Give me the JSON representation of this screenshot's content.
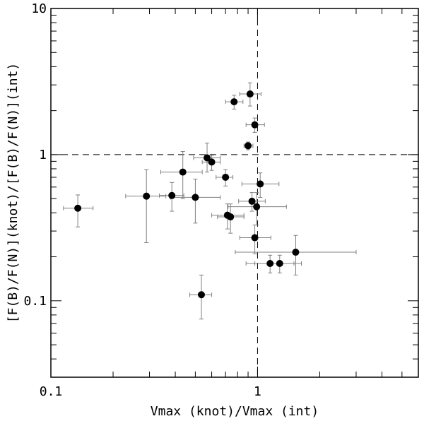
{
  "chart_data": {
    "type": "scatter",
    "title": "",
    "xlabel": "Vmax (knot)/Vmax (int)",
    "ylabel": "[F(B)/F(N)](knot)/[F(B)/F(N)](int)",
    "xscale": "log",
    "yscale": "log",
    "xlim": [
      0.1,
      6
    ],
    "ylim": [
      0.03,
      10
    ],
    "x_tick_labels": [
      {
        "value": 0.1,
        "label": "0.1"
      },
      {
        "value": 1,
        "label": "1"
      }
    ],
    "y_tick_labels": [
      {
        "value": 0.1,
        "label": "0.1"
      },
      {
        "value": 1,
        "label": "1"
      },
      {
        "value": 10,
        "label": "10"
      }
    ],
    "reference_lines": {
      "x": 1,
      "y": 1,
      "style": "dashed"
    },
    "points": [
      {
        "x": 0.135,
        "y": 0.43,
        "xerr": [
          0.115,
          0.16
        ],
        "yerr": [
          0.32,
          0.53
        ]
      },
      {
        "x": 0.29,
        "y": 0.52,
        "xerr": [
          0.23,
          0.36
        ],
        "yerr": [
          0.25,
          0.79
        ]
      },
      {
        "x": 0.385,
        "y": 0.525,
        "xerr": [
          0.335,
          0.44
        ],
        "yerr": [
          0.41,
          0.645
        ]
      },
      {
        "x": 0.435,
        "y": 0.76,
        "xerr": [
          0.34,
          0.54
        ],
        "yerr": [
          0.5,
          1.05
        ]
      },
      {
        "x": 0.5,
        "y": 0.51,
        "xerr": [
          0.38,
          0.66
        ],
        "yerr": [
          0.34,
          0.68
        ]
      },
      {
        "x": 0.535,
        "y": 0.11,
        "xerr": [
          0.47,
          0.6
        ],
        "yerr": [
          0.075,
          0.15
        ]
      },
      {
        "x": 0.57,
        "y": 0.95,
        "xerr": [
          0.49,
          0.66
        ],
        "yerr": [
          0.76,
          1.2
        ]
      },
      {
        "x": 0.6,
        "y": 0.89,
        "xerr": [
          0.54,
          0.66
        ],
        "yerr": [
          0.78,
          0.99
        ]
      },
      {
        "x": 0.7,
        "y": 0.7,
        "xerr": [
          0.63,
          0.76
        ],
        "yerr": [
          0.61,
          0.79
        ]
      },
      {
        "x": 0.715,
        "y": 0.385,
        "xerr": [
          0.6,
          0.86
        ],
        "yerr": [
          0.31,
          0.46
        ]
      },
      {
        "x": 0.74,
        "y": 0.375,
        "xerr": [
          0.64,
          0.86
        ],
        "yerr": [
          0.29,
          0.46
        ]
      },
      {
        "x": 0.77,
        "y": 2.3,
        "xerr": [
          0.7,
          0.85
        ],
        "yerr": [
          2.05,
          2.55
        ]
      },
      {
        "x": 0.9,
        "y": 1.15,
        "xerr": [
          0.86,
          0.95
        ],
        "yerr": [
          1.08,
          1.22
        ]
      },
      {
        "x": 0.92,
        "y": 2.6,
        "xerr": [
          0.82,
          1.04
        ],
        "yerr": [
          2.15,
          3.1
        ]
      },
      {
        "x": 0.94,
        "y": 0.48,
        "xerr": [
          0.81,
          1.09
        ],
        "yerr": [
          0.41,
          0.55
        ]
      },
      {
        "x": 0.97,
        "y": 1.6,
        "xerr": [
          0.88,
          1.08
        ],
        "yerr": [
          1.42,
          1.78
        ]
      },
      {
        "x": 0.97,
        "y": 0.27,
        "xerr": [
          0.82,
          1.16
        ],
        "yerr": [
          0.21,
          0.33
        ]
      },
      {
        "x": 0.99,
        "y": 0.44,
        "xerr": [
          0.72,
          1.38
        ],
        "yerr": [
          0.33,
          0.55
        ]
      },
      {
        "x": 1.03,
        "y": 0.63,
        "xerr": [
          0.84,
          1.27
        ],
        "yerr": [
          0.51,
          0.75
        ]
      },
      {
        "x": 1.15,
        "y": 0.18,
        "xerr": [
          0.88,
          1.5
        ],
        "yerr": [
          0.155,
          0.205
        ]
      },
      {
        "x": 1.28,
        "y": 0.18,
        "xerr": [
          0.97,
          1.63
        ],
        "yerr": [
          0.155,
          0.205
        ]
      },
      {
        "x": 1.53,
        "y": 0.215,
        "xerr": [
          0.78,
          3.0
        ],
        "yerr": [
          0.15,
          0.28
        ]
      }
    ]
  }
}
